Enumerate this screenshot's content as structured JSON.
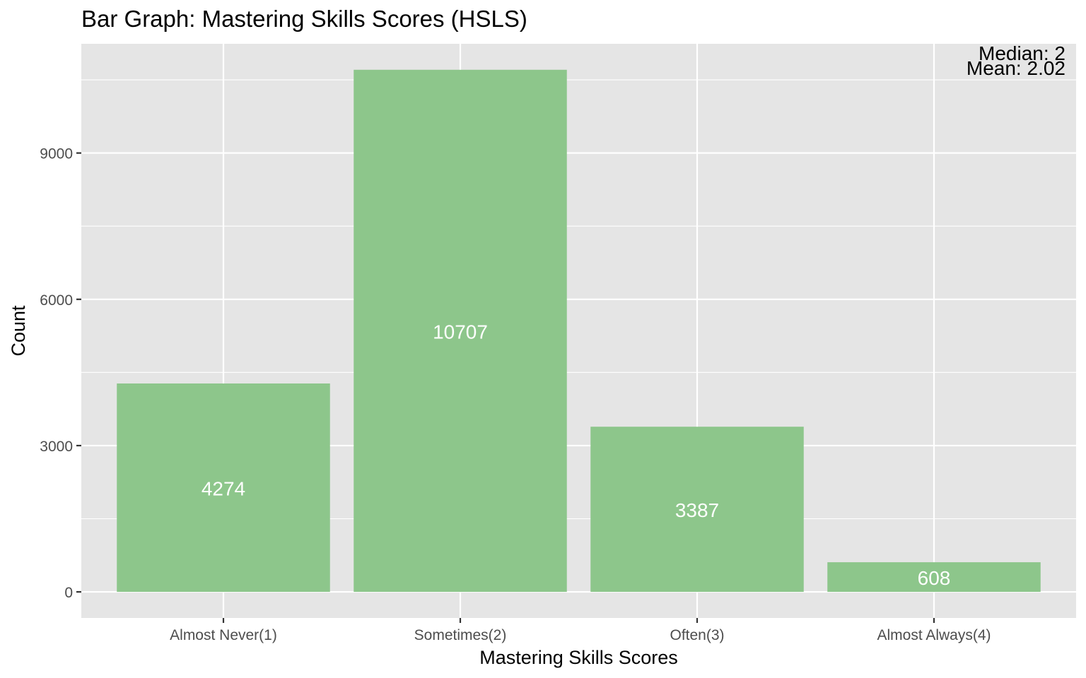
{
  "chart_data": {
    "type": "bar",
    "title": "Bar Graph: Mastering Skills Scores (HSLS)",
    "xlabel": "Mastering Skills Scores",
    "ylabel": "Count",
    "categories": [
      "Almost Never(1)",
      "Sometimes(2)",
      "Often(3)",
      "Almost Always(4)"
    ],
    "values": [
      4274,
      10707,
      3387,
      608
    ],
    "data_labels": [
      "4274",
      "10707",
      "3387",
      "608"
    ],
    "ylim": [
      -535,
      11240
    ],
    "yticks": [
      0,
      3000,
      6000,
      9000
    ],
    "ytick_labels": [
      "0",
      "3000",
      "6000",
      "9000"
    ],
    "grid": true,
    "annotations": [
      "Median: 2",
      "Mean: 2.02"
    ],
    "colors": {
      "bar": "#8DC68B",
      "panel": "#E5E5E5",
      "grid": "#FFFFFF",
      "bar_label": "#FFFFFF",
      "tick_label": "#4D4D4D",
      "text": "#000000"
    }
  }
}
